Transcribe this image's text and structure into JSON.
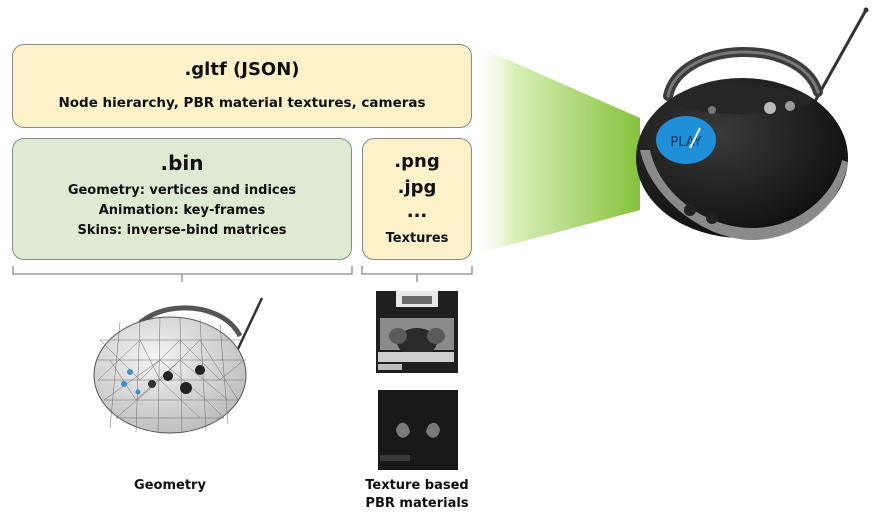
{
  "gltf": {
    "title": ".gltf (JSON)",
    "subtitle": "Node hierarchy, PBR material textures, cameras"
  },
  "bin": {
    "title": ".bin",
    "lines": [
      "Geometry: vertices and indices",
      "Animation: key-frames",
      "Skins: inverse-bind matrices"
    ]
  },
  "textures": {
    "ext1": ".png",
    "ext2": ".jpg",
    "ellipsis": "...",
    "label": "Textures"
  },
  "captions": {
    "geometry": "Geometry",
    "pbr_line1": "Texture based",
    "pbr_line2": "PBR materials"
  },
  "boombox": {
    "button_text": "PLAY"
  },
  "colors": {
    "gltf_fill": "#fcf1c8",
    "bin_fill": "#ddebd2",
    "textures_fill": "#fcf1c8",
    "beam_green": "#8bc34a",
    "play_button": "#1e8fd8"
  }
}
